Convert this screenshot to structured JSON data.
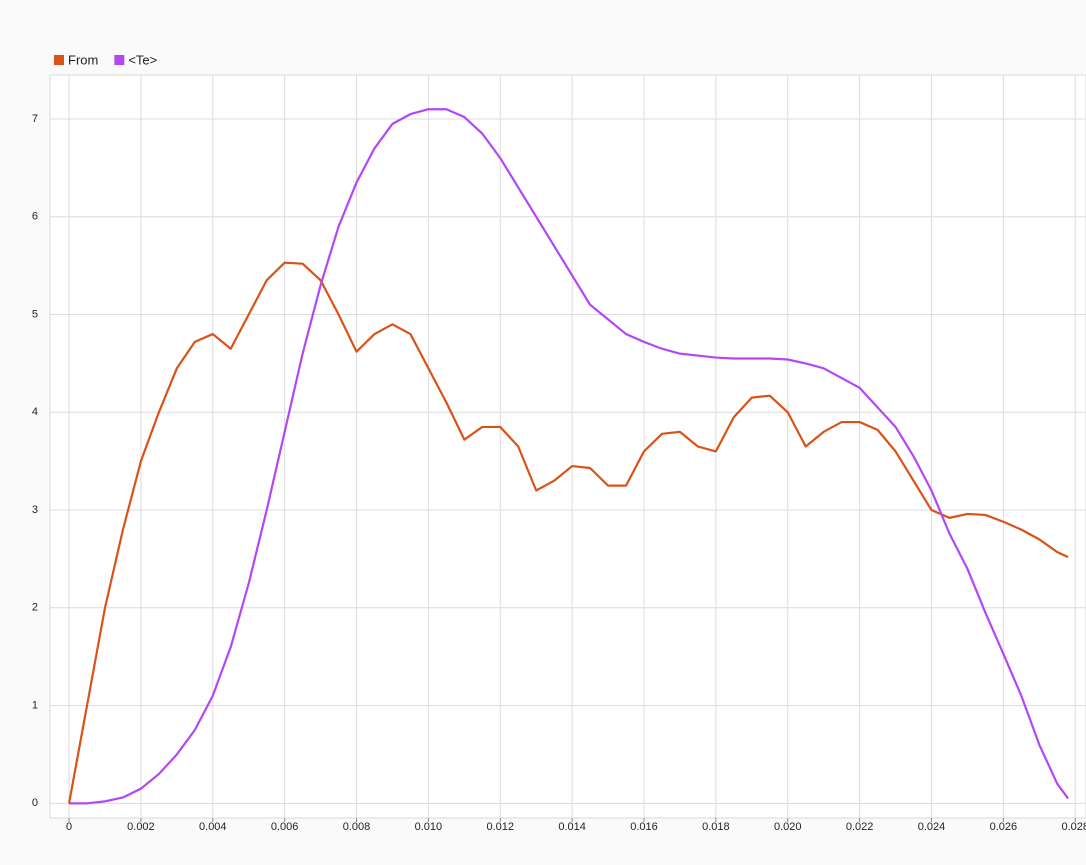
{
  "chart_data": {
    "type": "line",
    "x": [
      0,
      0.0005,
      0.001,
      0.0015,
      0.002,
      0.0025,
      0.003,
      0.0035,
      0.004,
      0.0045,
      0.005,
      0.0055,
      0.006,
      0.0065,
      0.007,
      0.0075,
      0.008,
      0.0085,
      0.009,
      0.0095,
      0.01,
      0.0105,
      0.011,
      0.0115,
      0.012,
      0.0125,
      0.013,
      0.0135,
      0.014,
      0.0145,
      0.015,
      0.0155,
      0.016,
      0.0165,
      0.017,
      0.0175,
      0.018,
      0.0185,
      0.019,
      0.0195,
      0.02,
      0.0205,
      0.021,
      0.0215,
      0.022,
      0.0225,
      0.023,
      0.0235,
      0.024,
      0.0245,
      0.025,
      0.0255,
      0.026,
      0.0265,
      0.027,
      0.0275,
      0.0278
    ],
    "series": [
      {
        "name": "From",
        "color": "#d95319",
        "values": [
          0,
          1.0,
          2.0,
          2.8,
          3.5,
          4.0,
          4.45,
          4.72,
          4.8,
          4.65,
          5.0,
          5.35,
          5.53,
          5.52,
          5.35,
          5.0,
          4.62,
          4.8,
          4.9,
          4.8,
          4.45,
          4.1,
          3.72,
          3.85,
          3.85,
          3.65,
          3.2,
          3.3,
          3.45,
          3.43,
          3.25,
          3.25,
          3.6,
          3.78,
          3.8,
          3.65,
          3.6,
          3.95,
          4.15,
          4.17,
          4.0,
          3.65,
          3.8,
          3.9,
          3.9,
          3.82,
          3.6,
          3.3,
          3.0,
          2.92,
          2.96,
          2.95,
          2.88,
          2.8,
          2.7,
          2.57,
          2.52
        ]
      },
      {
        "name": "<Te>",
        "color": "#b447f5",
        "values": [
          0,
          0,
          0.02,
          0.06,
          0.15,
          0.3,
          0.5,
          0.75,
          1.1,
          1.6,
          2.25,
          3.0,
          3.8,
          4.6,
          5.3,
          5.9,
          6.35,
          6.7,
          6.95,
          7.05,
          7.1,
          7.1,
          7.02,
          6.85,
          6.6,
          6.3,
          6.0,
          5.7,
          5.4,
          5.1,
          4.95,
          4.8,
          4.72,
          4.65,
          4.6,
          4.58,
          4.56,
          4.55,
          4.55,
          4.55,
          4.54,
          4.5,
          4.45,
          4.35,
          4.25,
          4.05,
          3.85,
          3.55,
          3.2,
          2.76,
          2.4,
          1.95,
          1.53,
          1.1,
          0.6,
          0.2,
          0.05
        ]
      }
    ],
    "xlim": [
      -0.00053,
      0.0283
    ],
    "ylim": [
      -0.15,
      7.45
    ],
    "xticks": [
      0,
      0.002,
      0.004,
      0.006,
      0.008,
      {
        "value": 0.01,
        "label": "0.010"
      },
      0.012,
      0.014,
      0.016,
      0.018,
      {
        "value": 0.02,
        "label": "0.020"
      },
      0.022,
      0.024,
      0.026,
      0.028
    ],
    "yticks": [
      0,
      1,
      2,
      3,
      4,
      5,
      6,
      7
    ],
    "grid": true,
    "legend": "top-left"
  }
}
